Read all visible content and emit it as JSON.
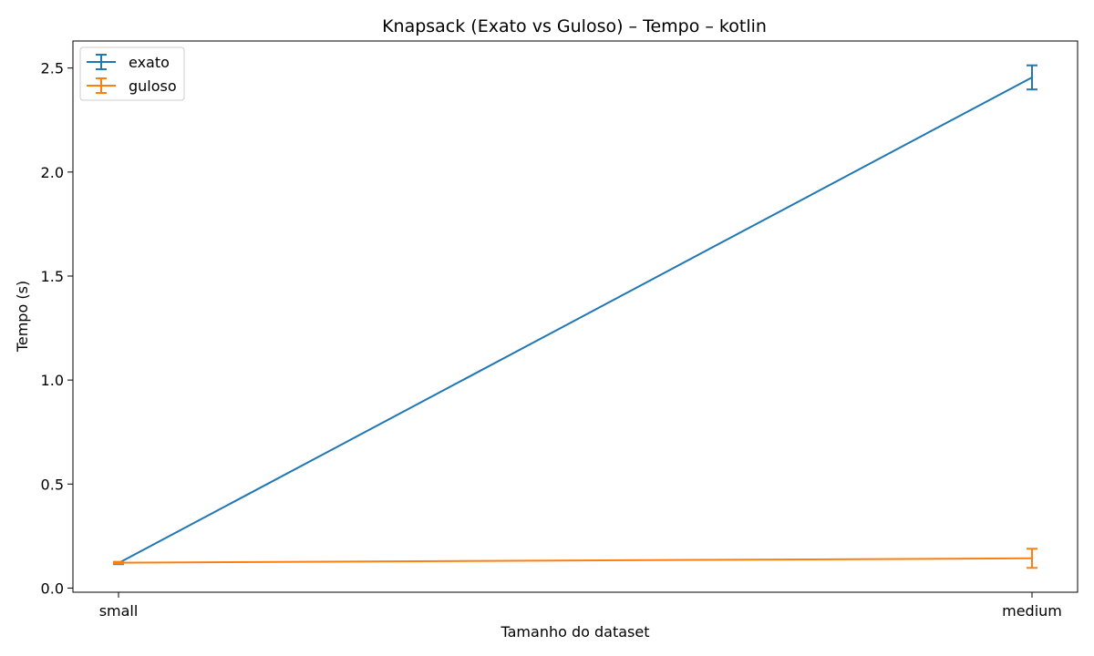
{
  "chart_data": {
    "type": "line",
    "title": "Knapsack (Exato vs Guloso) – Tempo – kotlin",
    "xlabel": "Tamanho do dataset",
    "ylabel": "Tempo (s)",
    "categories": [
      "small",
      "medium"
    ],
    "ylim": [
      -0.02,
      2.63
    ],
    "yticks": [
      0.0,
      0.5,
      1.0,
      1.5,
      2.0,
      2.5
    ],
    "ytick_labels": [
      "0.0",
      "0.5",
      "1.0",
      "1.5",
      "2.0",
      "2.5"
    ],
    "grid": false,
    "legend_position": "top-left",
    "series": [
      {
        "name": "exato",
        "color": "#1f77b4",
        "values": [
          0.12,
          2.455
        ],
        "errors": [
          0.005,
          0.058
        ]
      },
      {
        "name": "guloso",
        "color": "#ff7f0e",
        "values": [
          0.122,
          0.143
        ],
        "errors": [
          0.004,
          0.046
        ]
      }
    ]
  }
}
